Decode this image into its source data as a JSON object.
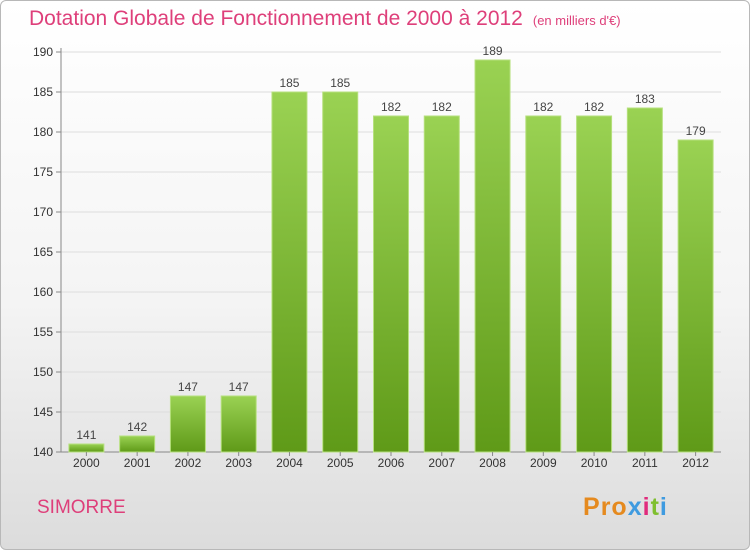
{
  "title": "Dotation Globale de Fonctionnement de 2000 à 2012",
  "subtitle": "(en milliers d'€)",
  "commune": "SIMORRE",
  "logo": {
    "letters": [
      "P",
      "r",
      "o",
      "x",
      "i",
      "t",
      "i"
    ],
    "colors": [
      "#e58a1f",
      "#e58a1f",
      "#e58a1f",
      "#3f9be0",
      "#e02b7c",
      "#7fbf2f",
      "#3f9be0"
    ]
  },
  "colors": {
    "bar": "#7fbf2f",
    "accent": "#de3f7a"
  },
  "chart_data": {
    "type": "bar",
    "title": "Dotation Globale de Fonctionnement de 2000 à 2012",
    "subtitle": "(en milliers d'€)",
    "categories": [
      "2000",
      "2001",
      "2002",
      "2003",
      "2004",
      "2005",
      "2006",
      "2007",
      "2008",
      "2009",
      "2010",
      "2011",
      "2012"
    ],
    "values": [
      141,
      142,
      147,
      147,
      185,
      185,
      182,
      182,
      189,
      182,
      182,
      183,
      179
    ],
    "ylim": [
      140,
      190
    ],
    "yticks": [
      140,
      145,
      150,
      155,
      160,
      165,
      170,
      175,
      180,
      185,
      190
    ],
    "grid": true
  }
}
